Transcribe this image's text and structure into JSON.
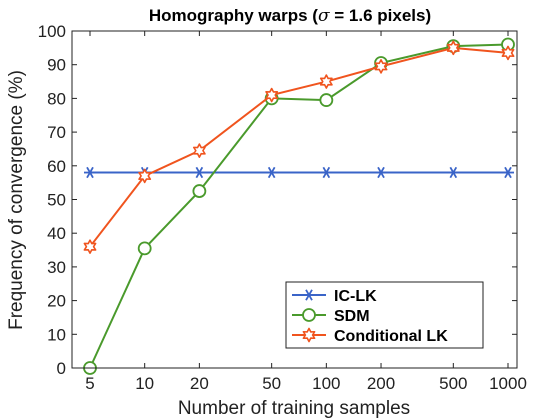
{
  "chart_data": {
    "type": "line",
    "title_prefix": "Homography warps (",
    "title_symbol": "σ",
    "title_suffix": " = 1.6 pixels)",
    "xlabel": "Number of training samples",
    "ylabel": "Frequency of convergence (%)",
    "x": [
      "5",
      "10",
      "20",
      "50",
      "100",
      "200",
      "500",
      "1000"
    ],
    "xscale": "log",
    "ylim": [
      0,
      100
    ],
    "yticks": [
      0,
      10,
      20,
      30,
      40,
      50,
      60,
      70,
      80,
      90,
      100
    ],
    "grid": false,
    "legend_position": "bottom-right",
    "series": [
      {
        "name": "IC-LK",
        "color": "#3a64c8",
        "marker": "asterisk",
        "values": [
          58,
          58,
          58,
          58,
          58,
          58,
          58,
          58
        ]
      },
      {
        "name": "SDM",
        "color": "#4a9a2c",
        "marker": "circle",
        "values": [
          0,
          35.5,
          52.5,
          80,
          79.5,
          90.5,
          95.5,
          96
        ]
      },
      {
        "name": "Conditional LK",
        "color": "#f0541e",
        "marker": "star",
        "values": [
          36,
          57,
          64.5,
          81,
          85,
          89.5,
          95,
          93.5
        ]
      }
    ]
  }
}
